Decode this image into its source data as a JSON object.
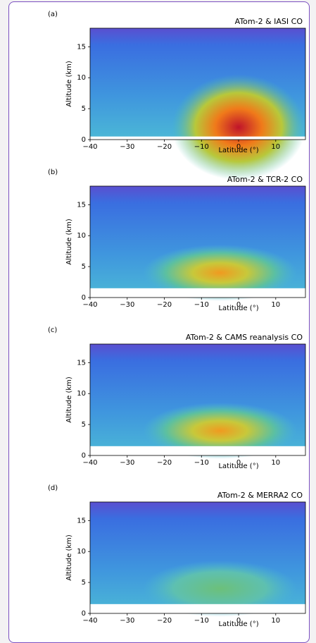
{
  "chart_data": [
    {
      "type": "heatmap",
      "panel_label": "(a)",
      "title": "ATom-2 & IASI CO",
      "x_label": "Latitude (°)",
      "y_label": "Altitude (km)",
      "xlim": [
        -40,
        18
      ],
      "ylim": [
        0,
        18
      ],
      "xticks": [
        {
          "value": -40,
          "label": "−40"
        },
        {
          "value": -30,
          "label": "−30"
        },
        {
          "value": -20,
          "label": "−20"
        },
        {
          "value": -10,
          "label": "−10"
        },
        0,
        10
      ],
      "yticks": [
        0,
        5,
        10,
        15
      ]
    },
    {
      "type": "heatmap",
      "panel_label": "(b)",
      "title": "ATom-2 & TCR-2 CO",
      "x_label": "Latitude (°)",
      "y_label": "Altitude (km)",
      "xlim": [
        -40,
        18
      ],
      "ylim": [
        0,
        18
      ],
      "xticks": [
        {
          "value": -40,
          "label": "−40"
        },
        {
          "value": -30,
          "label": "−30"
        },
        {
          "value": -20,
          "label": "−20"
        },
        {
          "value": -10,
          "label": "−10"
        },
        0,
        10
      ],
      "yticks": [
        0,
        5,
        10,
        15
      ]
    },
    {
      "type": "heatmap",
      "panel_label": "(c)",
      "title": "ATom-2 & CAMS reanalysis CO",
      "x_label": "Latitude (°)",
      "y_label": "Altitude (km)",
      "xlim": [
        -40,
        18
      ],
      "ylim": [
        0,
        18
      ],
      "xticks": [
        {
          "value": -40,
          "label": "−40"
        },
        {
          "value": -30,
          "label": "−30"
        },
        {
          "value": -20,
          "label": "−20"
        },
        {
          "value": -10,
          "label": "−10"
        },
        0,
        10
      ],
      "yticks": [
        0,
        5,
        10,
        15
      ]
    },
    {
      "type": "heatmap",
      "panel_label": "(d)",
      "title": "ATom-2 & MERRA2 CO",
      "x_label": "Latitude (°)",
      "y_label": "Altitude (km)",
      "xlim": [
        -40,
        18
      ],
      "ylim": [
        0,
        18
      ],
      "xticks": [
        {
          "value": -40,
          "label": "−40"
        },
        {
          "value": -30,
          "label": "−30"
        },
        {
          "value": -20,
          "label": "−20"
        },
        {
          "value": -10,
          "label": "−10"
        },
        0,
        10
      ],
      "yticks": [
        0,
        5,
        10,
        15
      ]
    }
  ]
}
